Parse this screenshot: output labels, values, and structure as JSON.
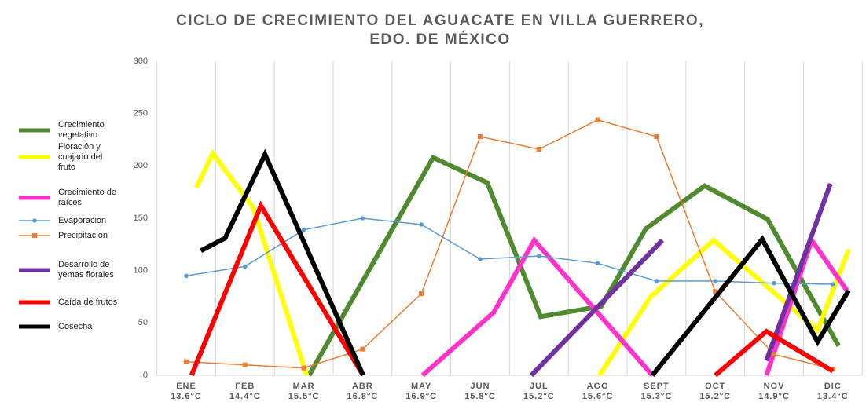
{
  "chart_data": {
    "type": "line",
    "title": [
      "CICLO DE CRECIMIENTO DEL AGUACATE EN VILLA GUERRERO,",
      "EDO. DE MÉXICO"
    ],
    "categories": [
      "ENE",
      "FEB",
      "MAR",
      "ABR",
      "MAY",
      "JUN",
      "JUL",
      "AGO",
      "SEPT",
      "OCT",
      "NOV",
      "DIC"
    ],
    "category_sublabels": [
      "13.6°C",
      "14.4°C",
      "15.5°C",
      "16.8°C",
      "16.9°C",
      "15.8°C",
      "15.2°C",
      "15.6°C",
      "15.3°C",
      "15.2°C",
      "14.9°C",
      "13.4°C"
    ],
    "ylim": [
      0,
      300
    ],
    "yticks": [
      0,
      50,
      100,
      150,
      200,
      250,
      300
    ],
    "legend": "left",
    "series": [
      {
        "name": "Crecimiento vegetativo",
        "color": "#4f8a2e",
        "width": 6,
        "x": [
          2.09,
          4.2,
          5.12,
          6.03,
          7.06,
          7.82,
          8.82,
          9.89,
          11.1
        ],
        "values": [
          0,
          208,
          184,
          56,
          66,
          140,
          181,
          149,
          28
        ]
      },
      {
        "name": "Floración y cuajado del fruto",
        "color": "#ffff00",
        "width": 6,
        "x": [
          0.17,
          0.45,
          1.14,
          2.05,
          null,
          7.03,
          7.9,
          8.97,
          10.74,
          11.27
        ],
        "values": [
          179,
          212,
          160,
          0,
          null,
          0,
          75,
          129,
          43,
          120
        ]
      },
      {
        "name": "Crecimiento de raíces",
        "color": "#ff33cc",
        "width": 6,
        "x": [
          4.02,
          5.23,
          5.92,
          7.93,
          null,
          9.87,
          10.64,
          11.24
        ],
        "values": [
          0,
          60,
          129,
          0,
          null,
          0,
          129,
          81
        ]
      },
      {
        "name": "Evaporacion",
        "color": "#5b9bd5",
        "width": 1.5,
        "marker": "circle",
        "x": [
          0,
          1,
          2,
          3,
          4,
          5,
          6,
          7,
          8,
          9,
          10,
          11
        ],
        "values": [
          95,
          104,
          139,
          150,
          144,
          111,
          114,
          107,
          90,
          90,
          88,
          87
        ]
      },
      {
        "name": "Precipitacion",
        "color": "#ed7d31",
        "width": 1.5,
        "marker": "square",
        "x": [
          0,
          1,
          2,
          3,
          4,
          5,
          6,
          7,
          8,
          9,
          10,
          11
        ],
        "values": [
          13,
          10,
          7,
          25,
          78,
          228,
          216,
          244,
          228,
          80,
          20,
          6
        ]
      },
      {
        "name": "Desarrollo de yemas florales",
        "color": "#7030a0",
        "width": 6,
        "x": [
          5.87,
          8.1,
          null,
          9.87,
          10.96
        ],
        "values": [
          0,
          129,
          null,
          14,
          183
        ]
      },
      {
        "name": "Caída de frutos",
        "color": "#ff0000",
        "width": 6,
        "x": [
          0.09,
          1.27,
          3.01,
          null,
          9.0,
          9.87,
          11.0
        ],
        "values": [
          0,
          162,
          0,
          null,
          0,
          42,
          4
        ]
      },
      {
        "name": "Cosecha",
        "color": "#000000",
        "width": 6,
        "x": [
          0.25,
          0.66,
          1.34,
          3.01,
          null,
          7.93,
          9.8,
          10.74,
          11.27
        ],
        "values": [
          119,
          131,
          211,
          0,
          null,
          0,
          130,
          32,
          81
        ]
      }
    ]
  }
}
